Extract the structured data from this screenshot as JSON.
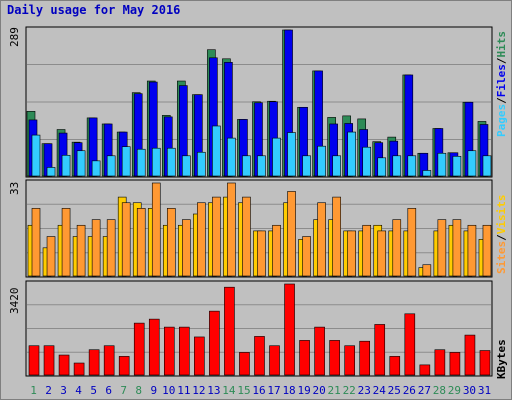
{
  "title": "Daily usage for May 2016",
  "colors": {
    "hits": "#2e8b57",
    "files": "#0000ee",
    "pages": "#33ccff",
    "visits": "#ffcc00",
    "sites": "#ff9933",
    "kbytes": "#ff0000",
    "weekend_label": "#2e8b57",
    "weekday_label": "#0000c0"
  },
  "panel1": {
    "max_label": "289",
    "labels": {
      "pages": "Pages",
      "files": "Files",
      "hits": "Hits"
    }
  },
  "panel2": {
    "max_label": "33",
    "labels": {
      "sites": "Sites",
      "visits": "Visits"
    }
  },
  "panel3": {
    "max_label": "3420",
    "labels": {
      "kbytes": "KBytes"
    }
  },
  "chart_data": [
    {
      "type": "bar",
      "categories": [
        "1",
        "2",
        "3",
        "4",
        "5",
        "6",
        "7",
        "8",
        "9",
        "10",
        "11",
        "12",
        "13",
        "14",
        "15",
        "16",
        "17",
        "18",
        "19",
        "20",
        "21",
        "22",
        "23",
        "24",
        "25",
        "26",
        "27",
        "28",
        "29",
        "30",
        "31"
      ],
      "weekend_days": [
        "1",
        "7",
        "8",
        "14",
        "15",
        "21",
        "22",
        "28",
        "29"
      ],
      "series": [
        {
          "name": "Hits",
          "values": [
            128,
            64,
            92,
            67,
            115,
            103,
            87,
            165,
            188,
            120,
            188,
            161,
            250,
            232,
            112,
            147,
            148,
            289,
            136,
            208,
            116,
            119,
            113,
            68,
            77,
            200,
            45,
            94,
            46,
            146,
            108
          ]
        },
        {
          "name": "Files",
          "values": [
            111,
            64,
            85,
            66,
            115,
            103,
            87,
            163,
            186,
            117,
            179,
            161,
            234,
            225,
            112,
            145,
            147,
            289,
            136,
            208,
            103,
            104,
            92,
            66,
            69,
            200,
            45,
            94,
            46,
            146,
            102
          ]
        },
        {
          "name": "Pages",
          "values": [
            81,
            17,
            41,
            50,
            30,
            40,
            58,
            53,
            55,
            55,
            40,
            47,
            99,
            75,
            40,
            40,
            75,
            86,
            40,
            59,
            40,
            87,
            57,
            36,
            40,
            40,
            11,
            45,
            39,
            50,
            40
          ]
        }
      ],
      "ylim": [
        0,
        289
      ]
    },
    {
      "type": "bar",
      "categories": [
        "1",
        "2",
        "3",
        "4",
        "5",
        "6",
        "7",
        "8",
        "9",
        "10",
        "11",
        "12",
        "13",
        "14",
        "15",
        "16",
        "17",
        "18",
        "19",
        "20",
        "21",
        "22",
        "23",
        "24",
        "25",
        "26",
        "27",
        "28",
        "29",
        "30",
        "31"
      ],
      "series": [
        {
          "name": "Visits",
          "values": [
            18,
            10,
            18,
            14,
            14,
            14,
            28,
            26,
            24,
            18,
            18,
            22,
            26,
            28,
            26,
            16,
            16,
            26,
            13,
            20,
            20,
            16,
            16,
            18,
            16,
            16,
            3,
            16,
            18,
            16,
            13
          ]
        },
        {
          "name": "Sites",
          "values": [
            24,
            14,
            24,
            18,
            20,
            20,
            26,
            24,
            33,
            24,
            20,
            26,
            28,
            33,
            28,
            16,
            18,
            30,
            14,
            26,
            28,
            16,
            18,
            16,
            20,
            24,
            4,
            20,
            20,
            18,
            18
          ]
        }
      ],
      "ylim": [
        0,
        33
      ]
    },
    {
      "type": "bar",
      "categories": [
        "1",
        "2",
        "3",
        "4",
        "5",
        "6",
        "7",
        "8",
        "9",
        "10",
        "11",
        "12",
        "13",
        "14",
        "15",
        "16",
        "17",
        "18",
        "19",
        "20",
        "21",
        "22",
        "23",
        "24",
        "25",
        "26",
        "27",
        "28",
        "29",
        "30",
        "31"
      ],
      "series": [
        {
          "name": "KBytes",
          "values": [
            1100,
            1100,
            750,
            450,
            950,
            1100,
            700,
            1950,
            2100,
            1800,
            1800,
            1430,
            2400,
            3300,
            850,
            1450,
            1100,
            3420,
            1300,
            1800,
            1300,
            1100,
            1270,
            1900,
            700,
            2300,
            380,
            950,
            850,
            1500,
            920
          ]
        }
      ],
      "ylim": [
        0,
        3420
      ]
    }
  ]
}
